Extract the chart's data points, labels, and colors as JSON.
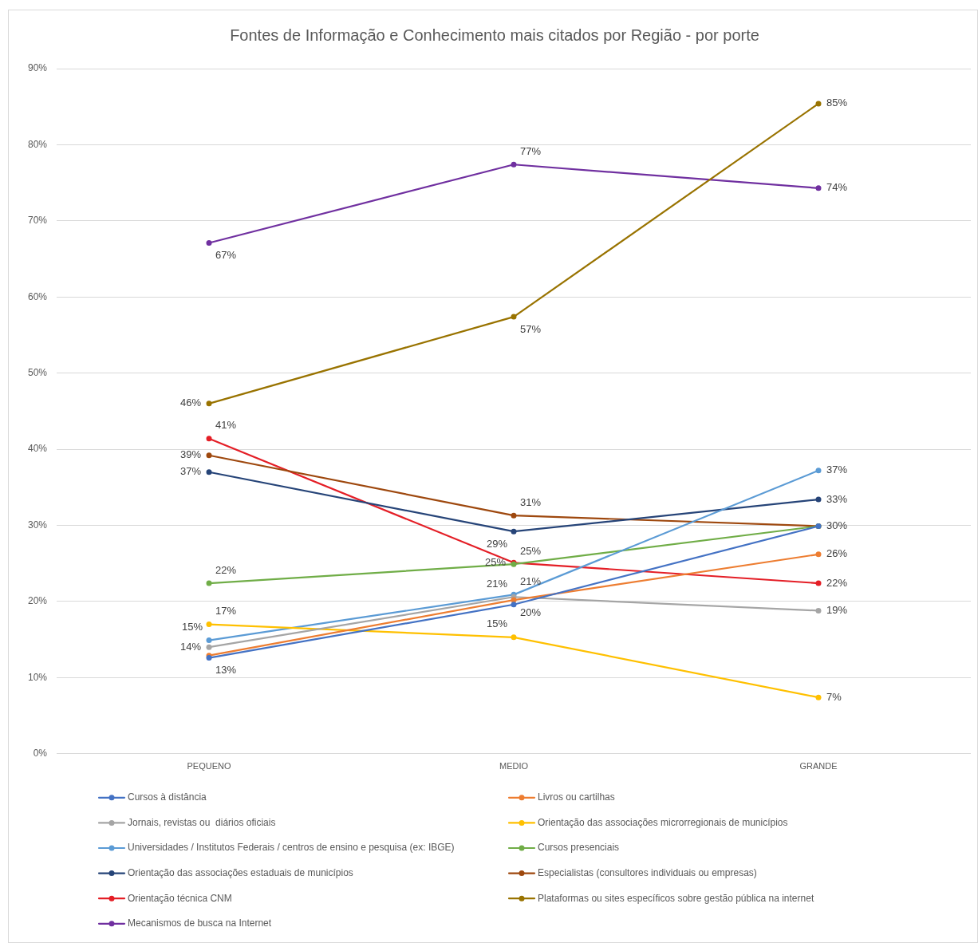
{
  "chart_data": {
    "type": "line",
    "title": "Fontes de Informação e Conhecimento mais citados por Região - por porte",
    "categories": [
      "PEQUENO",
      "MEDIO",
      "GRANDE"
    ],
    "ylim": [
      0,
      90
    ],
    "yticks": [
      {
        "value": 0,
        "label": "0%"
      },
      {
        "value": 10,
        "label": "10%"
      },
      {
        "value": 20,
        "label": "20%"
      },
      {
        "value": 30,
        "label": "30%"
      },
      {
        "value": 40,
        "label": "40%"
      },
      {
        "value": 50,
        "label": "50%"
      },
      {
        "value": 60,
        "label": "60%"
      },
      {
        "value": 70,
        "label": "70%"
      },
      {
        "value": 80,
        "label": "80%"
      },
      {
        "value": 90,
        "label": "90%"
      }
    ],
    "grid": "y",
    "legend": "bottom",
    "marker": "circle",
    "line_style": "solid",
    "series": [
      {
        "name": "Cursos à distância",
        "color": "#4472c4",
        "values": [
          12.6,
          19.6,
          29.9
        ],
        "value_labels": [
          "13%",
          null,
          null
        ]
      },
      {
        "name": "Livros ou cartilhas",
        "color": "#ed7d31",
        "values": [
          12.9,
          20.2,
          26.2
        ],
        "value_labels": [
          null,
          "20%",
          "26%"
        ]
      },
      {
        "name": "Jornais, revistas ou  diários oficiais",
        "color": "#a5a5a5",
        "values": [
          14.0,
          20.6,
          18.8
        ],
        "value_labels": [
          "14%",
          "21%",
          "19%"
        ]
      },
      {
        "name": "Orientação das associações microrregionais de municípios",
        "color": "#ffc000",
        "values": [
          17.0,
          15.3,
          7.4
        ],
        "value_labels": [
          "17%",
          "15%",
          "7%"
        ]
      },
      {
        "name": "Universidades / Institutos Federais / centros de ensino e pesquisa (ex: IBGE)",
        "color": "#5b9bd5",
        "values": [
          14.9,
          20.9,
          37.2
        ],
        "value_labels": [
          "15%",
          "21%",
          "37%"
        ]
      },
      {
        "name": "Cursos presenciais",
        "color": "#70ad47",
        "values": [
          22.4,
          24.9,
          29.9
        ],
        "value_labels": [
          "22%",
          "25%",
          null
        ]
      },
      {
        "name": "Orientação das associações estaduais de municípios",
        "color": "#264478",
        "values": [
          37.0,
          29.2,
          33.4
        ],
        "value_labels": [
          "37%",
          "29%",
          "33%"
        ]
      },
      {
        "name": "Especialistas (consultores individuais ou empresas)",
        "color": "#9e480e",
        "values": [
          39.2,
          31.3,
          29.9
        ],
        "value_labels": [
          "39%",
          "31%",
          "30%"
        ]
      },
      {
        "name": "Orientação técnica CNM",
        "color": "#e41e26",
        "values": [
          41.4,
          25.1,
          22.4
        ],
        "value_labels": [
          "41%",
          "25%",
          "22%"
        ]
      },
      {
        "name": "Plataformas ou sites específicos sobre gestão pública na internet",
        "color": "#997300",
        "values": [
          46.0,
          57.4,
          85.4
        ],
        "value_labels": [
          "46%",
          "57%",
          "85%"
        ]
      },
      {
        "name": "Mecanismos de busca na Internet",
        "color": "#7030a0",
        "values": [
          67.1,
          77.4,
          74.3
        ],
        "value_labels": [
          "67%",
          "77%",
          "74%"
        ]
      }
    ]
  }
}
